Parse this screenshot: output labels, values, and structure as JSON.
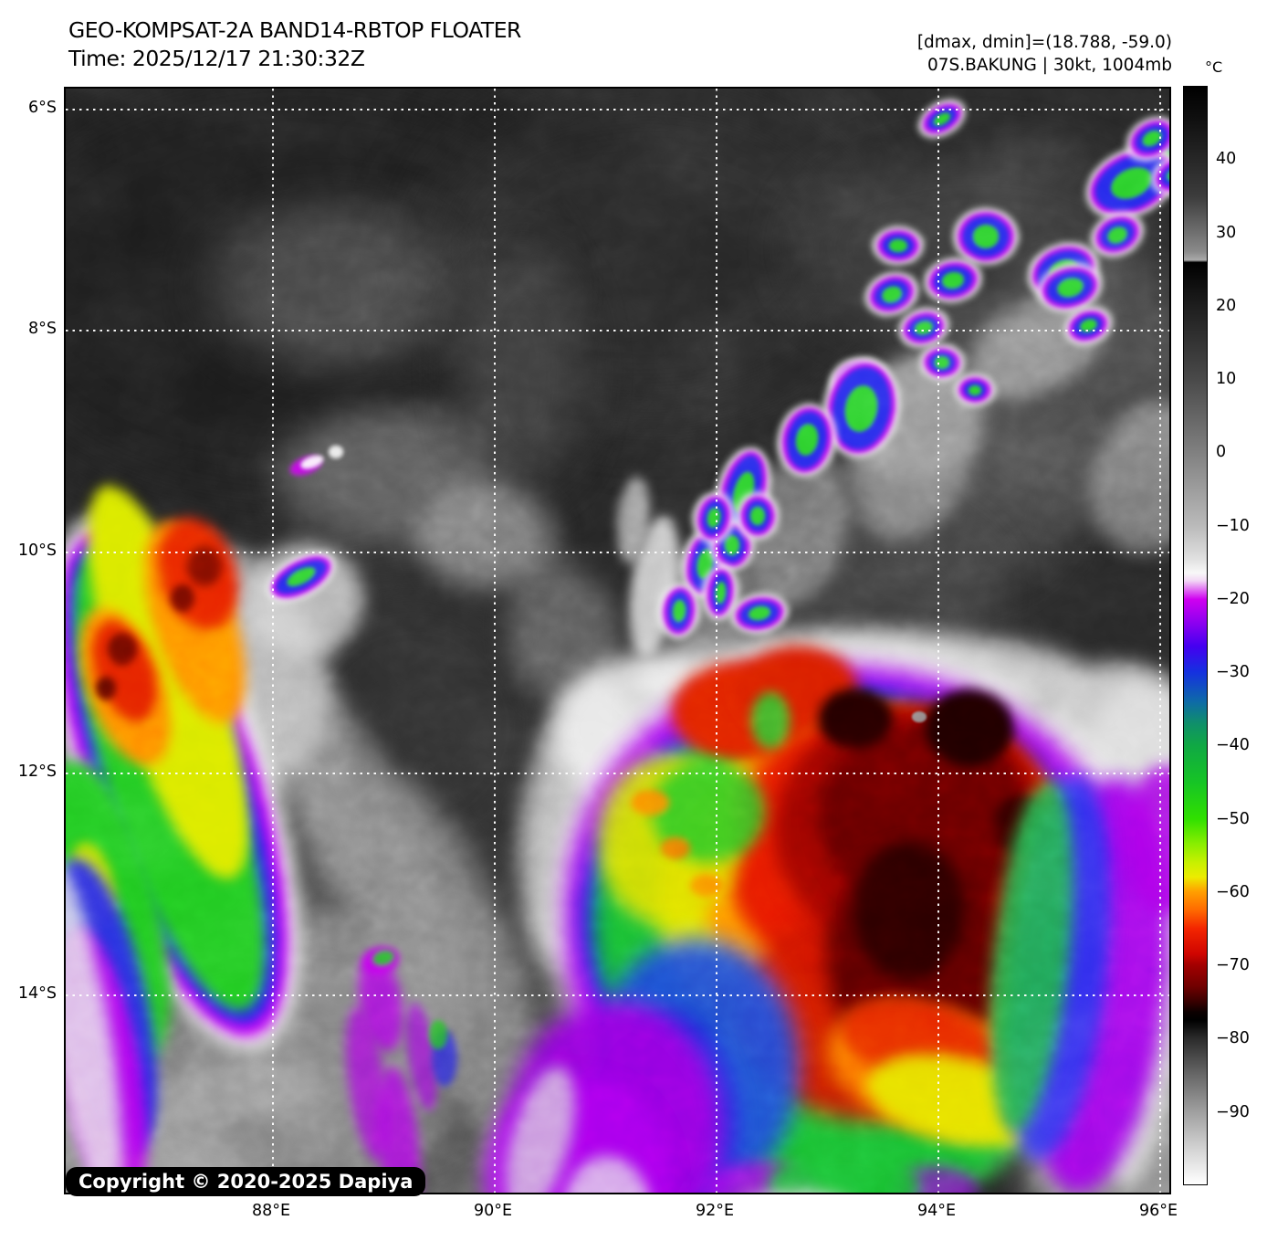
{
  "header": {
    "title": "GEO-KOMPSAT-2A BAND14-RBTOP FLOATER",
    "time_line": "Time: 2025/12/17 21:30:32Z",
    "dmax_dmin": "[dmax, dmin]=(18.788, -59.0)",
    "storm_label": "07S.BAKUNG | 30kt, 1004mb"
  },
  "colorbar": {
    "unit": "°C",
    "range_top_c": 50,
    "range_bottom_c": -100,
    "ticks": [
      {
        "label": "40",
        "temp": 40
      },
      {
        "label": "30",
        "temp": 30
      },
      {
        "label": "20",
        "temp": 20
      },
      {
        "label": "10",
        "temp": 10
      },
      {
        "label": "0",
        "temp": 0
      },
      {
        "label": "−10",
        "temp": -10
      },
      {
        "label": "−20",
        "temp": -20
      },
      {
        "label": "−30",
        "temp": -30
      },
      {
        "label": "−40",
        "temp": -40
      },
      {
        "label": "−50",
        "temp": -50
      },
      {
        "label": "−60",
        "temp": -60
      },
      {
        "label": "−70",
        "temp": -70
      },
      {
        "label": "−80",
        "temp": -80
      },
      {
        "label": "−90",
        "temp": -90
      }
    ],
    "stops": [
      [
        0.0,
        "#000000"
      ],
      [
        0.03,
        "#101010"
      ],
      [
        0.1,
        "#3c3c3c"
      ],
      [
        0.15,
        "#8a8a8a"
      ],
      [
        0.158,
        "#aaaaaa"
      ],
      [
        0.16,
        "#000000"
      ],
      [
        0.2,
        "#1e1e1e"
      ],
      [
        0.267,
        "#4a4a4a"
      ],
      [
        0.333,
        "#808080"
      ],
      [
        0.4,
        "#bababa"
      ],
      [
        0.43,
        "#e0e0e0"
      ],
      [
        0.443,
        "#f8f8f8"
      ],
      [
        0.45,
        "#f2d7f5"
      ],
      [
        0.467,
        "#cf00f0"
      ],
      [
        0.49,
        "#8800f0"
      ],
      [
        0.51,
        "#4400f0"
      ],
      [
        0.533,
        "#1530e0"
      ],
      [
        0.56,
        "#0e6aa8"
      ],
      [
        0.58,
        "#0f8f6a"
      ],
      [
        0.6,
        "#10a844"
      ],
      [
        0.633,
        "#16c426"
      ],
      [
        0.667,
        "#30e000"
      ],
      [
        0.69,
        "#8aee00"
      ],
      [
        0.707,
        "#c8f000"
      ],
      [
        0.72,
        "#ecec00"
      ],
      [
        0.733,
        "#ffa000"
      ],
      [
        0.75,
        "#ff6a00"
      ],
      [
        0.767,
        "#f32500"
      ],
      [
        0.79,
        "#cf0500"
      ],
      [
        0.8,
        "#a30000"
      ],
      [
        0.82,
        "#6f0000"
      ],
      [
        0.833,
        "#3a0000"
      ],
      [
        0.843,
        "#0c0000"
      ],
      [
        0.85,
        "#000000"
      ],
      [
        0.867,
        "#2b2b2b"
      ],
      [
        0.9,
        "#676767"
      ],
      [
        0.933,
        "#9e9e9e"
      ],
      [
        0.967,
        "#d2d2d2"
      ],
      [
        1.0,
        "#ffffff"
      ]
    ]
  },
  "map_axes": {
    "lat_labels": [
      "6°S",
      "8°S",
      "10°S",
      "12°S",
      "14°S"
    ],
    "lon_labels": [
      "88°E",
      "90°E",
      "92°E",
      "94°E",
      "96°E"
    ]
  },
  "watermark": {
    "text": "Copyright © 2020-2025 Dapiya"
  }
}
